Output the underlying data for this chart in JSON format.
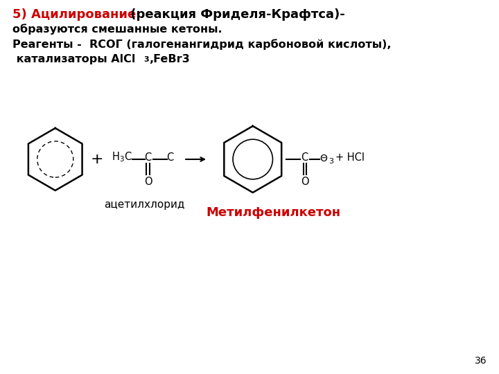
{
  "title_bold_red": "5) Ацилирование",
  "title_black": " (реакция Фриделя-Крафтса)-",
  "line2": "образуются смешанные кетоны.",
  "line3": "Реагенты -  RCOГ (галогенангидрид карбоновой кислоты),",
  "line4a": " катализаторы AlCl",
  "line4b": ",FeBr3",
  "label_left": "ацетилхлорид",
  "label_right": "Метилфенилкетон",
  "page_number": "36",
  "bg_color": "#ffffff",
  "text_color": "#000000",
  "red_color": "#cc0000",
  "font_size_title": 13,
  "font_size_body": 11.5,
  "font_size_label": 11
}
